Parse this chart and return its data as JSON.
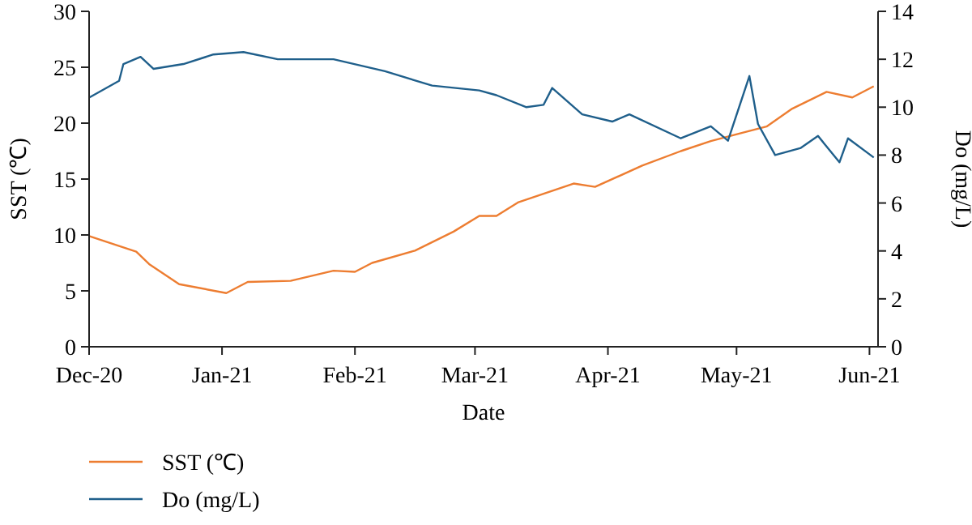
{
  "chart_data": {
    "type": "line",
    "xlabel": "Date",
    "ylabel": "SST (℃)",
    "y2label": "Do (mg/L)",
    "xlim": [
      "2020-12-01",
      "2021-06-03"
    ],
    "xticks": [
      {
        "value": "2020-12-01",
        "label": "Dec-20"
      },
      {
        "value": "2021-01-01",
        "label": "Jan-21"
      },
      {
        "value": "2021-02-01",
        "label": "Feb-21"
      },
      {
        "value": "2021-03-01",
        "label": "Mar-21"
      },
      {
        "value": "2021-04-01",
        "label": "Apr-21"
      },
      {
        "value": "2021-05-01",
        "label": "May-21"
      },
      {
        "value": "2021-06-01",
        "label": "Jun-21"
      }
    ],
    "ylim": [
      0,
      30
    ],
    "yticks": [
      0,
      5,
      10,
      15,
      20,
      25,
      30
    ],
    "y2lim": [
      0,
      14
    ],
    "y2ticks": [
      0,
      2,
      4,
      6,
      8,
      10,
      12,
      14
    ],
    "legend": "bottom left",
    "grid": false,
    "series": [
      {
        "name": "SST (℃)",
        "color": "#ed7d31",
        "x": [
          "2020-12-01",
          "2020-12-12",
          "2020-12-15",
          "2020-12-22",
          "2021-01-02",
          "2021-01-07",
          "2021-01-17",
          "2021-01-27",
          "2021-02-01",
          "2021-02-05",
          "2021-02-15",
          "2021-02-24",
          "2021-03-02",
          "2021-03-06",
          "2021-03-11",
          "2021-03-24",
          "2021-03-29",
          "2021-04-09",
          "2021-04-18",
          "2021-04-25",
          "2021-05-02",
          "2021-05-08",
          "2021-05-14",
          "2021-05-22",
          "2021-05-28",
          "2021-06-02"
        ],
        "values": [
          9.9,
          8.5,
          7.4,
          5.6,
          4.8,
          5.8,
          5.9,
          6.8,
          6.7,
          7.5,
          8.6,
          10.3,
          11.7,
          11.7,
          12.9,
          14.6,
          14.3,
          16.2,
          17.5,
          18.4,
          19.1,
          19.7,
          21.3,
          22.8,
          22.3,
          23.3
        ]
      },
      {
        "name": "Do (mg/L)",
        "color": "#1f5f8b",
        "axis": "y2",
        "x": [
          "2020-12-01",
          "2020-12-08",
          "2020-12-09",
          "2020-12-13",
          "2020-12-16",
          "2020-12-23",
          "2020-12-30",
          "2021-01-06",
          "2021-01-14",
          "2021-01-27",
          "2021-02-08",
          "2021-02-19",
          "2021-03-02",
          "2021-03-06",
          "2021-03-13",
          "2021-03-17",
          "2021-03-19",
          "2021-03-26",
          "2021-04-02",
          "2021-04-06",
          "2021-04-18",
          "2021-04-25",
          "2021-04-29",
          "2021-05-04",
          "2021-05-06",
          "2021-05-10",
          "2021-05-16",
          "2021-05-20",
          "2021-05-25",
          "2021-05-27",
          "2021-06-02"
        ],
        "values": [
          10.4,
          11.1,
          11.8,
          12.1,
          11.6,
          11.8,
          12.2,
          12.3,
          12.0,
          12.0,
          11.5,
          10.9,
          10.7,
          10.5,
          10.0,
          10.1,
          10.8,
          9.7,
          9.4,
          9.7,
          8.7,
          9.2,
          8.6,
          11.3,
          9.3,
          8.0,
          8.3,
          8.8,
          7.7,
          8.7,
          7.9
        ]
      }
    ]
  }
}
